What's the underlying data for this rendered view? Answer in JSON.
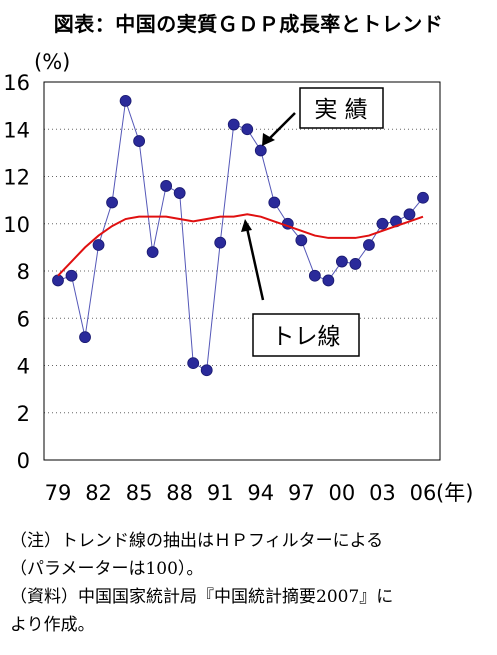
{
  "title": "図表：中国の実質ＧＤＰ成長率とトレンド",
  "notes": [
    "（注）トレンド線の抽出はＨＰフィルターによる",
    "（パラメーターは100）。",
    "（資料）中国国家統計局『中国統計摘要2007』に",
    "より作成。"
  ],
  "chart_data": {
    "type": "line",
    "ylabel": "(%)",
    "xlabel": "(年)",
    "ylim": [
      0,
      16
    ],
    "xlim": [
      1979,
      2006
    ],
    "yticks": [
      "0",
      "2",
      "4",
      "6",
      "8",
      "10",
      "12",
      "14",
      "16"
    ],
    "xticks": [
      "79",
      "82",
      "85",
      "88",
      "91",
      "94",
      "97",
      "00",
      "03",
      "06"
    ],
    "grid": "horizontal-dotted",
    "colors": {
      "actual": "#5558b8",
      "marker": "#2a2a9a",
      "trend": "#e01010"
    },
    "x": [
      1979,
      1980,
      1981,
      1982,
      1983,
      1984,
      1985,
      1986,
      1987,
      1988,
      1989,
      1990,
      1991,
      1992,
      1993,
      1994,
      1995,
      1996,
      1997,
      1998,
      1999,
      2000,
      2001,
      2002,
      2003,
      2004,
      2005,
      2006
    ],
    "series": [
      {
        "role": "actual",
        "values": [
          7.6,
          7.8,
          5.2,
          9.1,
          10.9,
          15.2,
          13.5,
          8.8,
          11.6,
          11.3,
          4.1,
          3.8,
          9.2,
          14.2,
          14.0,
          13.1,
          10.9,
          10.0,
          9.3,
          7.8,
          7.6,
          8.4,
          8.3,
          9.1,
          10.0,
          10.1,
          10.4,
          11.1
        ]
      },
      {
        "role": "trend",
        "values": [
          7.8,
          8.4,
          9.0,
          9.5,
          9.9,
          10.2,
          10.3,
          10.3,
          10.3,
          10.2,
          10.1,
          10.2,
          10.3,
          10.3,
          10.4,
          10.3,
          10.1,
          9.9,
          9.7,
          9.5,
          9.4,
          9.4,
          9.4,
          9.5,
          9.7,
          9.9,
          10.1,
          10.3
        ]
      }
    ],
    "annotations": [
      {
        "label": "実 績",
        "target_series": "actual",
        "target_x": 1994
      },
      {
        "label": "トレ線",
        "target_series": "trend",
        "target_x": 1993
      }
    ]
  }
}
